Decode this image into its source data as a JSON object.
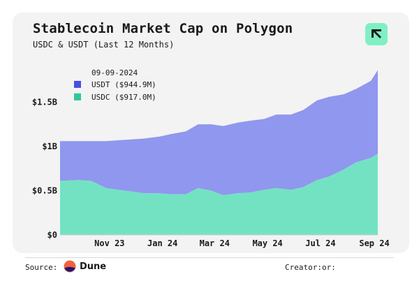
{
  "title": "Stablecoin Market Cap on Polygon",
  "subtitle": "USDC & USDT (Last 12 Months)",
  "footer": {
    "source_label": "Source:",
    "source_name": "Dune",
    "creator_label": "Creator:",
    "creator_value": "or:"
  },
  "colors": {
    "usdt": "#9097ee",
    "usdc": "#73e2c3",
    "usdt_legend": "#4a4fe0",
    "usdc_legend": "#2ec79b",
    "logo_bg": "#7ff0c3",
    "card_bg": "#f3f3f3"
  },
  "chart_data": {
    "type": "area",
    "stacked": true,
    "x": [
      "2023-09-09",
      "2023-10-01",
      "2023-10-15",
      "2023-11-01",
      "2023-11-15",
      "2023-12-01",
      "2023-12-15",
      "2024-01-01",
      "2024-01-15",
      "2024-02-01",
      "2024-02-15",
      "2024-03-01",
      "2024-03-15",
      "2024-04-01",
      "2024-04-15",
      "2024-05-01",
      "2024-05-15",
      "2024-06-01",
      "2024-06-15",
      "2024-07-01",
      "2024-07-15",
      "2024-08-01",
      "2024-08-15",
      "2024-09-01",
      "2024-09-09"
    ],
    "series": [
      {
        "name": "USDC",
        "values": [
          0.61,
          0.62,
          0.61,
          0.53,
          0.51,
          0.49,
          0.47,
          0.47,
          0.46,
          0.46,
          0.53,
          0.5,
          0.45,
          0.47,
          0.48,
          0.51,
          0.53,
          0.51,
          0.54,
          0.62,
          0.66,
          0.74,
          0.82,
          0.87,
          0.917
        ]
      },
      {
        "name": "USDT",
        "values": [
          0.45,
          0.44,
          0.45,
          0.53,
          0.56,
          0.59,
          0.62,
          0.64,
          0.68,
          0.71,
          0.72,
          0.75,
          0.78,
          0.8,
          0.81,
          0.8,
          0.83,
          0.85,
          0.87,
          0.9,
          0.9,
          0.85,
          0.83,
          0.87,
          0.945
        ]
      }
    ],
    "xticks": [
      {
        "label": "Nov 23",
        "x": "2023-11-05"
      },
      {
        "label": "Jan 24",
        "x": "2024-01-05"
      },
      {
        "label": "Mar 24",
        "x": "2024-03-05"
      },
      {
        "label": "May 24",
        "x": "2024-05-05"
      },
      {
        "label": "Jul 24",
        "x": "2024-07-05"
      },
      {
        "label": "Sep 24",
        "x": "2024-09-05"
      }
    ],
    "yticks": [
      {
        "label": "$0",
        "value": 0
      },
      {
        "label": "$0.5B",
        "value": 0.5
      },
      {
        "label": "$1B",
        "value": 1.0
      },
      {
        "label": "$1.5B",
        "value": 1.5
      }
    ],
    "ylim": [
      0,
      2.0
    ],
    "xlim": [
      "2023-09-09",
      "2024-09-09"
    ],
    "legend": {
      "date": "09-09-2024",
      "entries": [
        "USDT ($944.9M)",
        "USDC ($917.0M)"
      ]
    },
    "grid": false
  }
}
